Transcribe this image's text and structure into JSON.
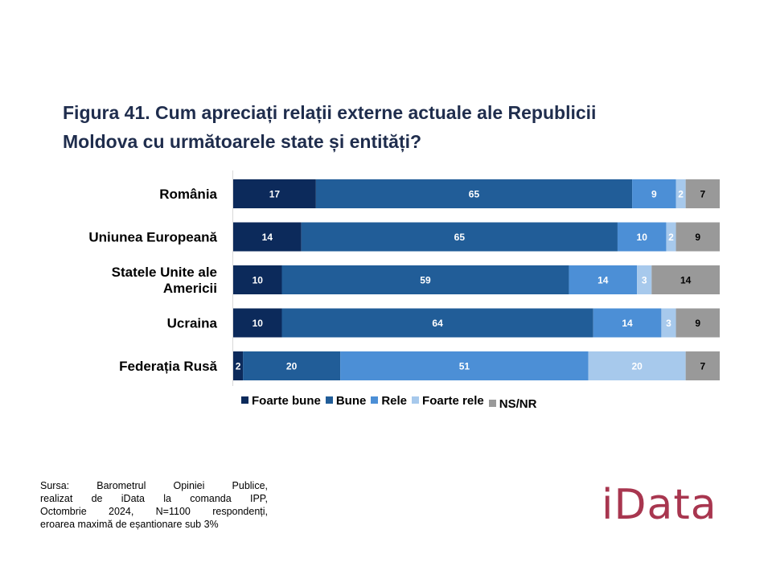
{
  "title_lines": [
    "Figura 41. Cum apreciați relații externe actuale ale Republicii",
    "Moldova cu următoarele state și entități?"
  ],
  "chart_data": {
    "type": "bar",
    "orientation": "horizontal",
    "stacked": true,
    "percent_stacked": true,
    "categories": [
      "România",
      "Uniunea Europeană",
      "Statele Unite ale Americii",
      "Ucraina",
      "Federația Rusă"
    ],
    "category_label_lines": [
      [
        "România"
      ],
      [
        "Uniunea Europeană"
      ],
      [
        "Statele Unite ale",
        "Americii"
      ],
      [
        "Ucraina"
      ],
      [
        "Federația Rusă"
      ]
    ],
    "series": [
      {
        "name": "Foarte bune",
        "color": "#0c2a5b",
        "label_color": "#ffffff",
        "values": [
          17,
          14,
          10,
          10,
          2
        ]
      },
      {
        "name": "Bune",
        "color": "#215d98",
        "label_color": "#ffffff",
        "values": [
          65,
          65,
          59,
          64,
          20
        ]
      },
      {
        "name": "Rele",
        "color": "#4c8fd6",
        "label_color": "#ffffff",
        "values": [
          9,
          10,
          14,
          14,
          51
        ]
      },
      {
        "name": "Foarte rele",
        "color": "#a7c9ec",
        "label_color": "#ffffff",
        "values": [
          2,
          2,
          3,
          3,
          20
        ]
      },
      {
        "name": "NS/NR",
        "color": "#999999",
        "label_color": "#000000",
        "values": [
          7,
          9,
          14,
          9,
          7
        ]
      }
    ],
    "legend_position": "bottom",
    "grid": false
  },
  "source_lines": [
    "Sursa: Barometrul Opiniei Publice,",
    "realizat de iData la comanda IPP,",
    "Octombrie 2024, N=1100 respondenți,",
    "eroarea maximă de eșantionare sub 3%"
  ],
  "logo_text": "iData"
}
